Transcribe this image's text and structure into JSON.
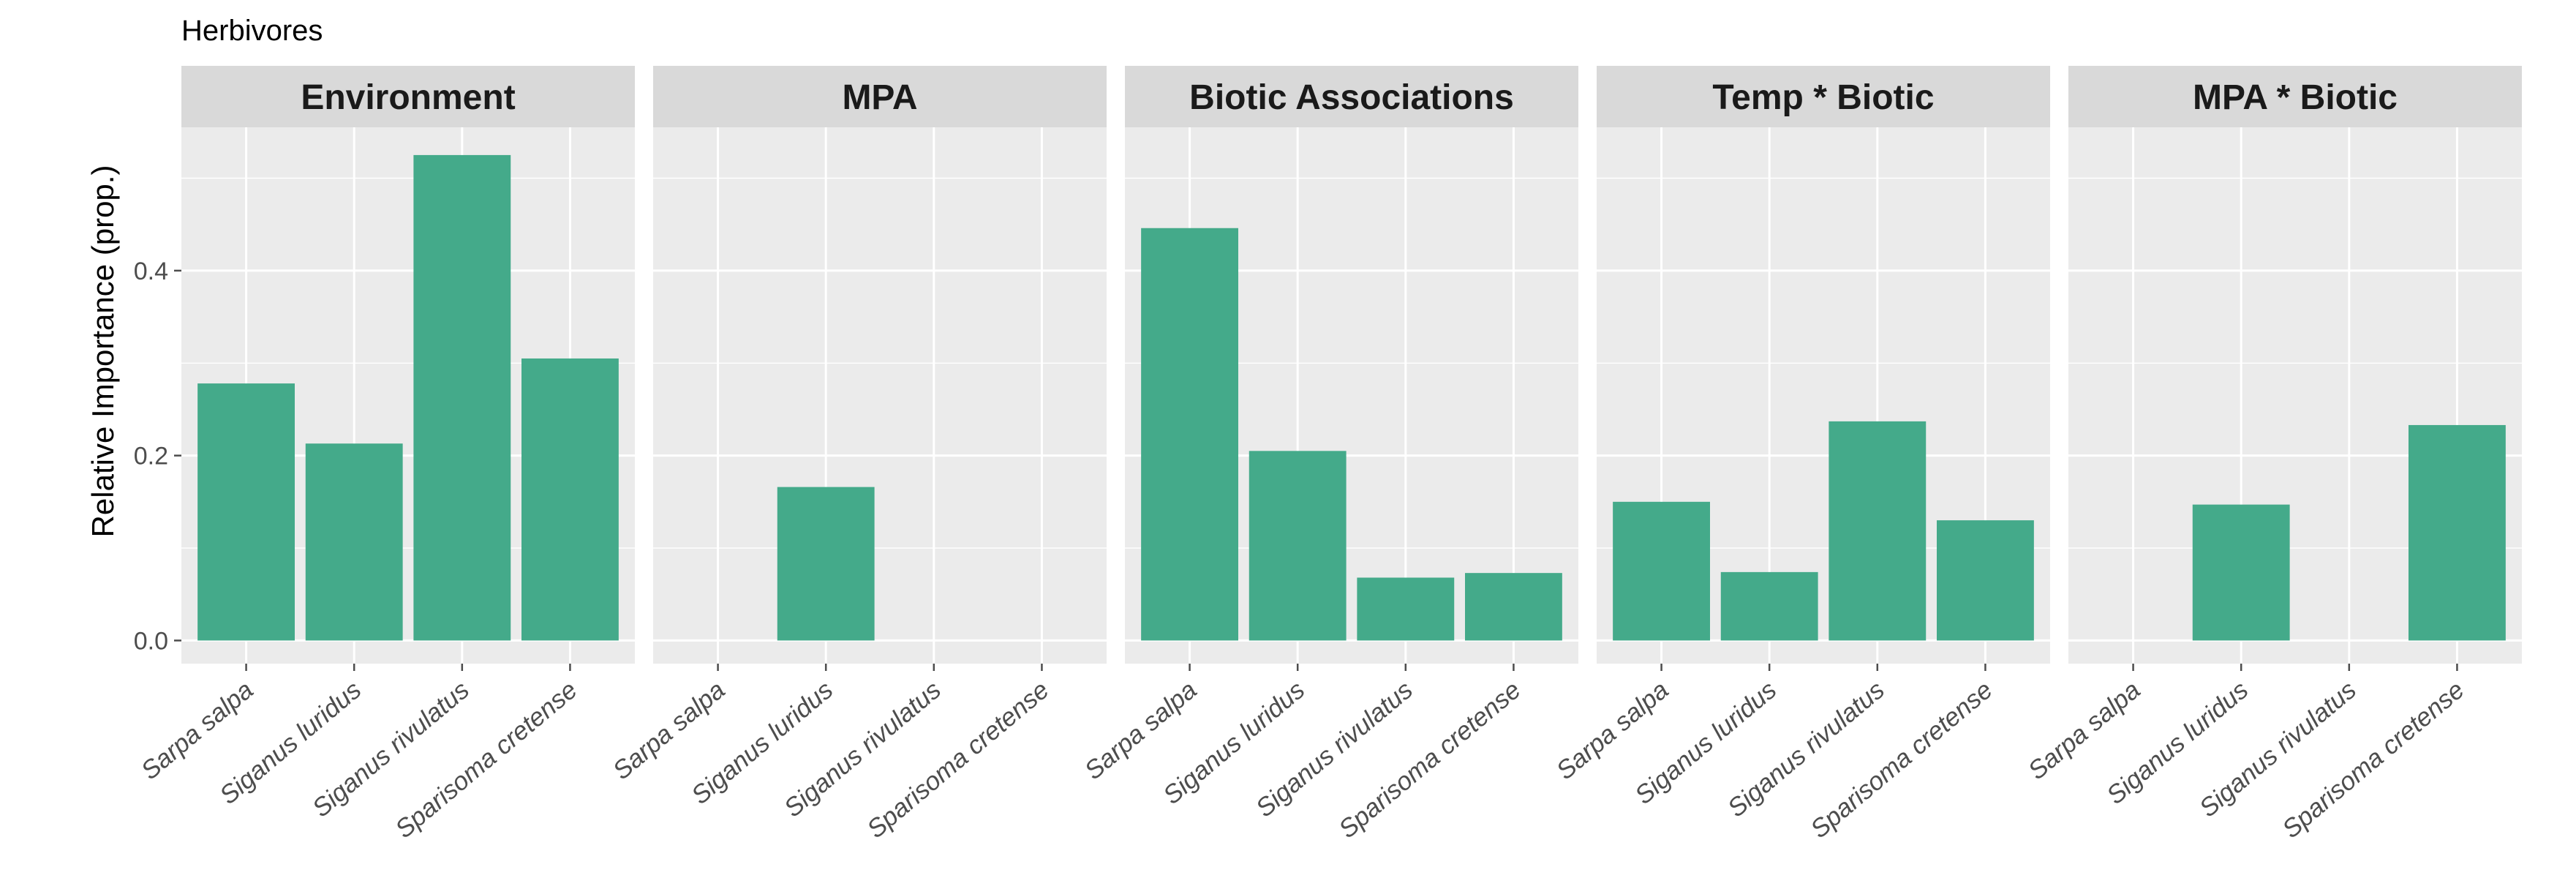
{
  "chart_data": {
    "type": "bar",
    "title": "Herbivores",
    "ylabel": "Relative Importance (prop.)",
    "xlabel": "",
    "ylim": [
      -0.025,
      0.555
    ],
    "yticks": [
      0.0,
      0.2,
      0.4
    ],
    "ytick_labels": [
      "0.0",
      "0.2",
      "0.4"
    ],
    "minor_gridlines": [
      0.1,
      0.3,
      0.5
    ],
    "grid": true,
    "categories": [
      "Sarpa salpa",
      "Siganus luridus",
      "Siganus rivulatus",
      "Sparisoma cretense"
    ],
    "facets": [
      {
        "label": "Environment",
        "values": [
          0.278,
          0.213,
          0.525,
          0.305
        ]
      },
      {
        "label": "MPA",
        "values": [
          0,
          0.166,
          0,
          0
        ]
      },
      {
        "label": "Biotic Associations",
        "values": [
          0.446,
          0.205,
          0.068,
          0.073
        ]
      },
      {
        "label": "Temp * Biotic",
        "values": [
          0.15,
          0.074,
          0.237,
          0.13
        ]
      },
      {
        "label": "MPA * Biotic",
        "values": [
          0,
          0.147,
          0,
          0.233
        ]
      }
    ],
    "colors": {
      "bar": "#44AA8A",
      "panel": "#EBEBEB",
      "strip": "#D9D9D9",
      "grid": "#FFFFFF",
      "tick": "#4D4D4D"
    }
  }
}
